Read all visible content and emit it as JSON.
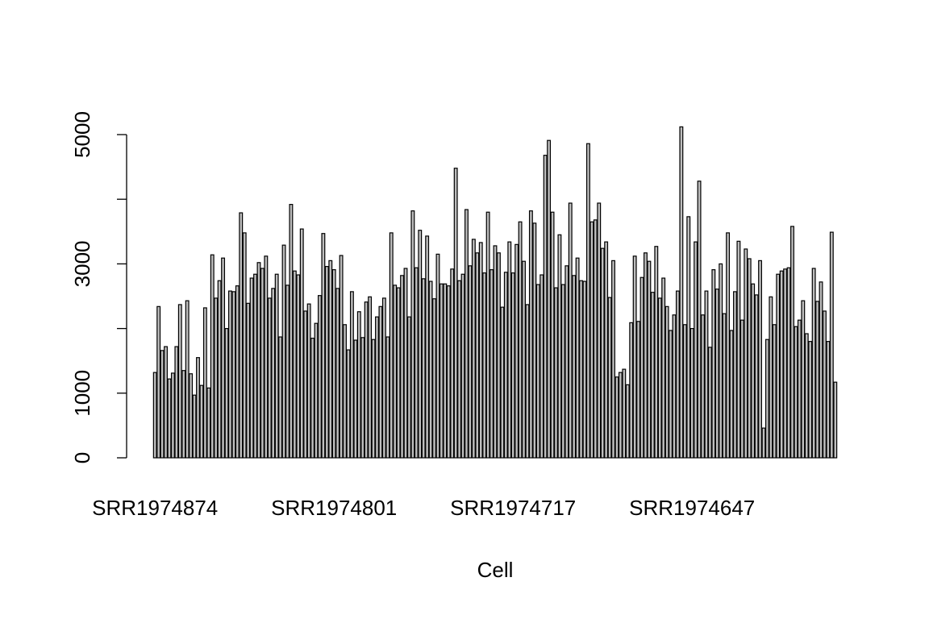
{
  "chart_data": {
    "type": "bar",
    "x_label": "Cell",
    "color": "#bebebe",
    "categories": [
      "SRR1974874",
      null,
      null,
      null,
      null,
      null,
      null,
      null,
      null,
      null,
      null,
      null,
      null,
      null,
      null,
      null,
      null,
      null,
      null,
      null,
      null,
      null,
      null,
      null,
      null,
      null,
      null,
      null,
      null,
      null,
      null,
      null,
      null,
      null,
      null,
      null,
      null,
      null,
      null,
      null,
      null,
      null,
      null,
      null,
      null,
      null,
      null,
      null,
      null,
      null,
      "SRR1974801",
      null,
      null,
      null,
      null,
      null,
      null,
      null,
      null,
      null,
      null,
      null,
      null,
      null,
      null,
      null,
      null,
      null,
      null,
      null,
      null,
      null,
      null,
      null,
      null,
      null,
      null,
      null,
      null,
      null,
      null,
      null,
      null,
      null,
      null,
      null,
      null,
      null,
      null,
      null,
      null,
      null,
      null,
      null,
      null,
      null,
      null,
      null,
      null,
      null,
      "SRR1974717",
      null,
      null,
      null,
      null,
      null,
      null,
      null,
      null,
      null,
      null,
      null,
      null,
      null,
      null,
      null,
      null,
      null,
      null,
      null,
      null,
      null,
      null,
      null,
      null,
      null,
      null,
      null,
      null,
      null,
      null,
      null,
      null,
      null,
      null,
      null,
      null,
      null,
      null,
      null,
      null,
      null,
      null,
      null,
      null,
      null,
      null,
      null,
      null,
      null,
      "SRR1974647",
      null,
      null,
      null,
      null,
      null,
      null,
      null,
      null,
      null,
      null,
      null,
      null,
      null,
      null,
      null,
      null,
      null,
      null,
      null,
      null,
      null,
      null,
      null,
      null,
      null,
      null,
      null,
      null,
      null,
      null,
      null,
      null,
      null,
      null,
      null,
      null,
      null,
      null,
      null,
      null
    ],
    "values": [
      1320,
      2340,
      1660,
      1720,
      1220,
      1310,
      1720,
      2370,
      1350,
      2430,
      1300,
      970,
      1550,
      1120,
      2320,
      1080,
      3140,
      2470,
      2740,
      3090,
      2000,
      2580,
      2570,
      2660,
      3790,
      3480,
      2390,
      2780,
      2840,
      3020,
      2930,
      3120,
      2470,
      2620,
      2840,
      1870,
      3290,
      2670,
      3920,
      2890,
      2830,
      3540,
      2270,
      2380,
      1850,
      2080,
      2510,
      3470,
      2960,
      3050,
      2910,
      2620,
      3130,
      2060,
      1670,
      2570,
      1820,
      2260,
      1860,
      2410,
      2490,
      1830,
      2180,
      2340,
      2470,
      1870,
      3480,
      2670,
      2630,
      2820,
      2930,
      2180,
      3820,
      2940,
      3520,
      2770,
      3430,
      2730,
      2460,
      3150,
      2690,
      2690,
      2660,
      2920,
      4480,
      2740,
      2840,
      3840,
      2970,
      3380,
      3170,
      3330,
      2860,
      3800,
      2910,
      3280,
      3170,
      2330,
      2870,
      3340,
      2860,
      3300,
      3650,
      3040,
      2370,
      3820,
      3630,
      2680,
      2830,
      4680,
      4910,
      3800,
      2630,
      3450,
      2680,
      2970,
      3940,
      2820,
      3090,
      2740,
      2730,
      4860,
      3650,
      3680,
      3940,
      3240,
      3340,
      2480,
      3050,
      1250,
      1320,
      1370,
      1130,
      2090,
      3120,
      2110,
      2790,
      3170,
      3040,
      2560,
      3270,
      2470,
      2780,
      2340,
      1970,
      2210,
      2580,
      5120,
      2060,
      3730,
      2000,
      3340,
      4280,
      2210,
      2580,
      1710,
      2910,
      2610,
      3000,
      2230,
      3480,
      1970,
      2570,
      3350,
      2130,
      3230,
      3080,
      2690,
      2520,
      3050,
      460,
      1830,
      2490,
      2060,
      2840,
      2890,
      2920,
      2940,
      3580,
      2030,
      2130,
      2430,
      1920,
      1800,
      2930,
      2420,
      2720,
      2270,
      1800,
      3490,
      1170
    ],
    "ylim": [
      0,
      5000
    ],
    "yticks": [
      0,
      1000,
      3000,
      5000
    ],
    "y_tick_marks": [
      0,
      1000,
      2000,
      3000,
      4000,
      5000
    ],
    "grid": false
  }
}
